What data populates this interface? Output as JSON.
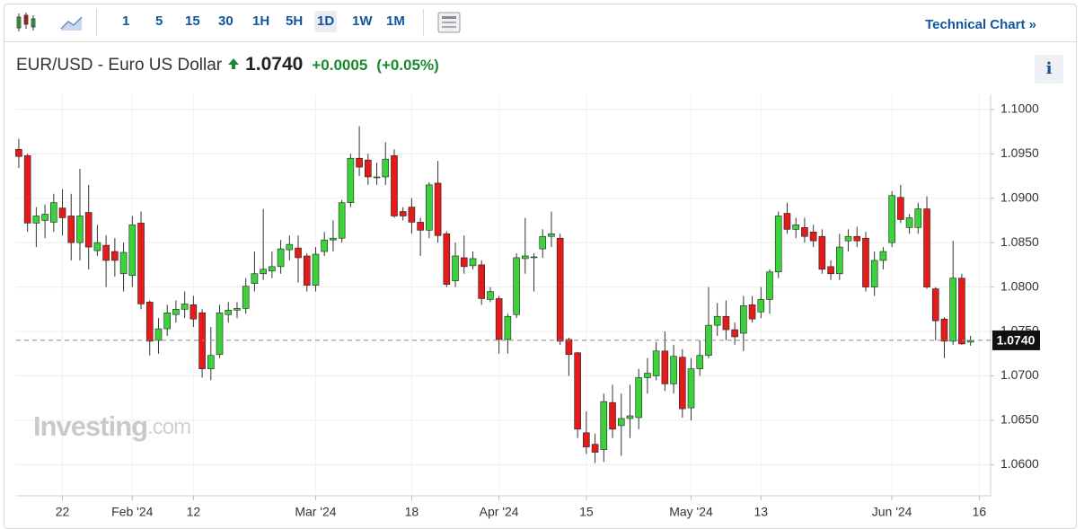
{
  "toolbar": {
    "intervals": [
      "1",
      "5",
      "15",
      "30",
      "1H",
      "5H",
      "1D",
      "1W",
      "1M"
    ],
    "active": "1D",
    "link": "Technical Chart »"
  },
  "header": {
    "name": "EUR/USD - Euro US Dollar",
    "price": "1.0740",
    "change": "+0.0005",
    "change_pct": "(+0.05%)",
    "info": "i"
  },
  "chart_data": {
    "type": "candlestick",
    "watermark": "Investing",
    "watermark_suffix": ".com",
    "up_color": "#3cd23c",
    "down_color": "#e31b1b",
    "grid": true,
    "last_price": {
      "value": 1.074,
      "label": "1.0740"
    },
    "open": [
      1.0955,
      1.0948,
      1.0872,
      1.0875,
      1.0873,
      1.0889,
      1.088,
      1.085,
      1.0884,
      1.0841,
      1.0847,
      1.084,
      1.0815,
      1.0813,
      1.0872,
      1.0783,
      1.074,
      1.0753,
      1.0769,
      1.0775,
      1.078,
      1.0771,
      1.0708,
      1.0724,
      1.0769,
      1.0774,
      1.0776,
      1.0804,
      1.0815,
      1.0818,
      1.0823,
      1.0842,
      1.0844,
      1.0835,
      1.0802,
      1.084,
      1.0853,
      1.0855,
      1.0895,
      1.0945,
      1.0943,
      1.0923,
      1.0924,
      1.0948,
      1.0885,
      1.089,
      1.0873,
      1.0864,
      1.0917,
      1.086,
      1.0807,
      1.0833,
      1.0824,
      1.0825,
      1.0786,
      1.0787,
      1.0741,
      1.0769,
      1.0832,
      1.0834,
      1.0843,
      1.0857,
      1.0855,
      1.0741,
      1.0726,
      1.0636,
      1.0623,
      1.0617,
      1.067,
      1.0644,
      1.0652,
      1.0653,
      1.0698,
      1.07,
      1.0728,
      1.0691,
      1.0721,
      1.0664,
      1.0708,
      1.0723,
      1.0757,
      1.0767,
      1.0752,
      1.0748,
      1.078,
      1.0772,
      1.0786,
      1.0817,
      1.0883,
      1.0865,
      1.0867,
      1.0862,
      1.0857,
      1.0823,
      1.0815,
      1.0852,
      1.0857,
      1.0855,
      1.08,
      1.083,
      1.085,
      1.0901,
      1.0867,
      1.0867,
      1.0888,
      1.0798,
      1.0764,
      1.0739,
      1.081,
      1.0738
    ],
    "high": [
      1.0967,
      1.095,
      1.089,
      1.0893,
      1.0905,
      1.091,
      1.0905,
      1.0933,
      1.0915,
      1.087,
      1.0858,
      1.0855,
      1.085,
      1.088,
      1.0885,
      1.0785,
      1.0765,
      1.078,
      1.0785,
      1.0795,
      1.079,
      1.0775,
      1.0755,
      1.078,
      1.0783,
      1.0783,
      1.081,
      1.084,
      1.0888,
      1.084,
      1.0853,
      1.0858,
      1.0858,
      1.0838,
      1.0845,
      1.0862,
      1.0875,
      1.0898,
      1.095,
      1.0981,
      1.095,
      1.094,
      1.0963,
      1.0955,
      1.089,
      1.09,
      1.0878,
      1.0918,
      1.0942,
      1.0863,
      1.085,
      1.0858,
      1.084,
      1.083,
      1.08,
      1.079,
      1.077,
      1.0838,
      1.0878,
      1.0838,
      1.0865,
      1.0885,
      1.086,
      1.0743,
      1.0727,
      1.066,
      1.0635,
      1.068,
      1.069,
      1.068,
      1.069,
      1.0708,
      1.072,
      1.0738,
      1.075,
      1.0735,
      1.073,
      1.072,
      1.074,
      1.08,
      1.0782,
      1.0785,
      1.076,
      1.079,
      1.079,
      1.08,
      1.082,
      1.0885,
      1.0895,
      1.0878,
      1.0878,
      1.087,
      1.0865,
      1.083,
      1.086,
      1.0865,
      1.0868,
      1.0862,
      1.084,
      1.0845,
      1.0908,
      1.0915,
      1.0882,
      1.0895,
      1.0902,
      1.08,
      1.0766,
      1.0852,
      1.0815,
      1.0745
    ],
    "low": [
      1.0934,
      1.0862,
      1.0845,
      1.0855,
      1.0862,
      1.0858,
      1.083,
      1.083,
      1.082,
      1.0835,
      1.08,
      1.0812,
      1.0795,
      1.08,
      1.0775,
      1.0723,
      1.0725,
      1.0745,
      1.076,
      1.0765,
      1.0755,
      1.0698,
      1.0695,
      1.072,
      1.076,
      1.0765,
      1.077,
      1.0795,
      1.0808,
      1.081,
      1.0815,
      1.083,
      1.0805,
      1.0795,
      1.0795,
      1.0835,
      1.084,
      1.085,
      1.089,
      1.0925,
      1.0915,
      1.0915,
      1.0915,
      1.0878,
      1.0875,
      1.086,
      1.0835,
      1.0855,
      1.085,
      1.08,
      1.08,
      1.0815,
      1.082,
      1.078,
      1.0783,
      1.0725,
      1.0725,
      1.0765,
      1.0815,
      1.0795,
      1.0833,
      1.0845,
      1.0735,
      1.07,
      1.063,
      1.0612,
      1.0602,
      1.0603,
      1.063,
      1.061,
      1.063,
      1.064,
      1.068,
      1.0695,
      1.0683,
      1.068,
      1.0653,
      1.065,
      1.07,
      1.072,
      1.0745,
      1.074,
      1.0735,
      1.0728,
      1.076,
      1.0765,
      1.077,
      1.081,
      1.086,
      1.0855,
      1.085,
      1.0845,
      1.0815,
      1.0808,
      1.0808,
      1.084,
      1.0845,
      1.0795,
      1.079,
      1.082,
      1.0845,
      1.0872,
      1.086,
      1.086,
      1.0798,
      1.074,
      1.072,
      1.0735,
      1.0735,
      1.0734
    ],
    "close": [
      1.0947,
      1.0872,
      1.088,
      1.0882,
      1.0895,
      1.0878,
      1.085,
      1.088,
      1.0845,
      1.085,
      1.083,
      1.083,
      1.0839,
      1.087,
      1.0781,
      1.0739,
      1.0753,
      1.0771,
      1.0775,
      1.0781,
      1.0764,
      1.0708,
      1.0723,
      1.0771,
      1.0774,
      1.0776,
      1.0801,
      1.0815,
      1.082,
      1.0823,
      1.0843,
      1.0848,
      1.0833,
      1.0802,
      1.0837,
      1.0853,
      1.0855,
      1.0895,
      1.0945,
      1.0935,
      1.0924,
      1.0924,
      1.0944,
      1.088,
      1.088,
      1.0873,
      1.0864,
      1.0915,
      1.0858,
      1.0803,
      1.0835,
      1.0823,
      1.0832,
      1.0787,
      1.0795,
      1.0741,
      1.0767,
      1.0833,
      1.0835,
      1.0834,
      1.0857,
      1.086,
      1.0739,
      1.0724,
      1.064,
      1.062,
      1.0614,
      1.0671,
      1.064,
      1.0652,
      1.0655,
      1.0698,
      1.0703,
      1.0728,
      1.0691,
      1.0722,
      1.0663,
      1.0708,
      1.0723,
      1.0757,
      1.0767,
      1.0752,
      1.0744,
      1.0779,
      1.0764,
      1.0786,
      1.0817,
      1.088,
      1.0865,
      1.087,
      1.0857,
      1.0852,
      1.082,
      1.0815,
      1.0845,
      1.0857,
      1.0852,
      1.08,
      1.083,
      1.084,
      1.0903,
      1.0876,
      1.0878,
      1.0888,
      1.08,
      1.0762,
      1.0739,
      1.081,
      1.0736,
      1.074
    ],
    "xlim": [
      -0.3,
      111.3
    ],
    "xticks": [
      {
        "value": 5,
        "label": "22"
      },
      {
        "value": 13,
        "label": "Feb '24"
      },
      {
        "value": 20,
        "label": "12"
      },
      {
        "value": 34,
        "label": "Mar '24"
      },
      {
        "value": 45,
        "label": "18"
      },
      {
        "value": 55,
        "label": "Apr '24"
      },
      {
        "value": 65,
        "label": "15"
      },
      {
        "value": 77,
        "label": "May '24"
      },
      {
        "value": 85,
        "label": "13"
      },
      {
        "value": 100,
        "label": "Jun '24"
      },
      {
        "value": 110,
        "label": "16"
      }
    ],
    "ylim": [
      1.0565,
      1.1017
    ],
    "yticks": [
      {
        "value": 1.06,
        "label": "1.0600"
      },
      {
        "value": 1.065,
        "label": "1.0650"
      },
      {
        "value": 1.07,
        "label": "1.0700"
      },
      {
        "value": 1.075,
        "label": "1.0750"
      },
      {
        "value": 1.08,
        "label": "1.0800"
      },
      {
        "value": 1.085,
        "label": "1.0850"
      },
      {
        "value": 1.09,
        "label": "1.0900"
      },
      {
        "value": 1.095,
        "label": "1.0950"
      },
      {
        "value": 1.1,
        "label": "1.1000"
      }
    ]
  }
}
